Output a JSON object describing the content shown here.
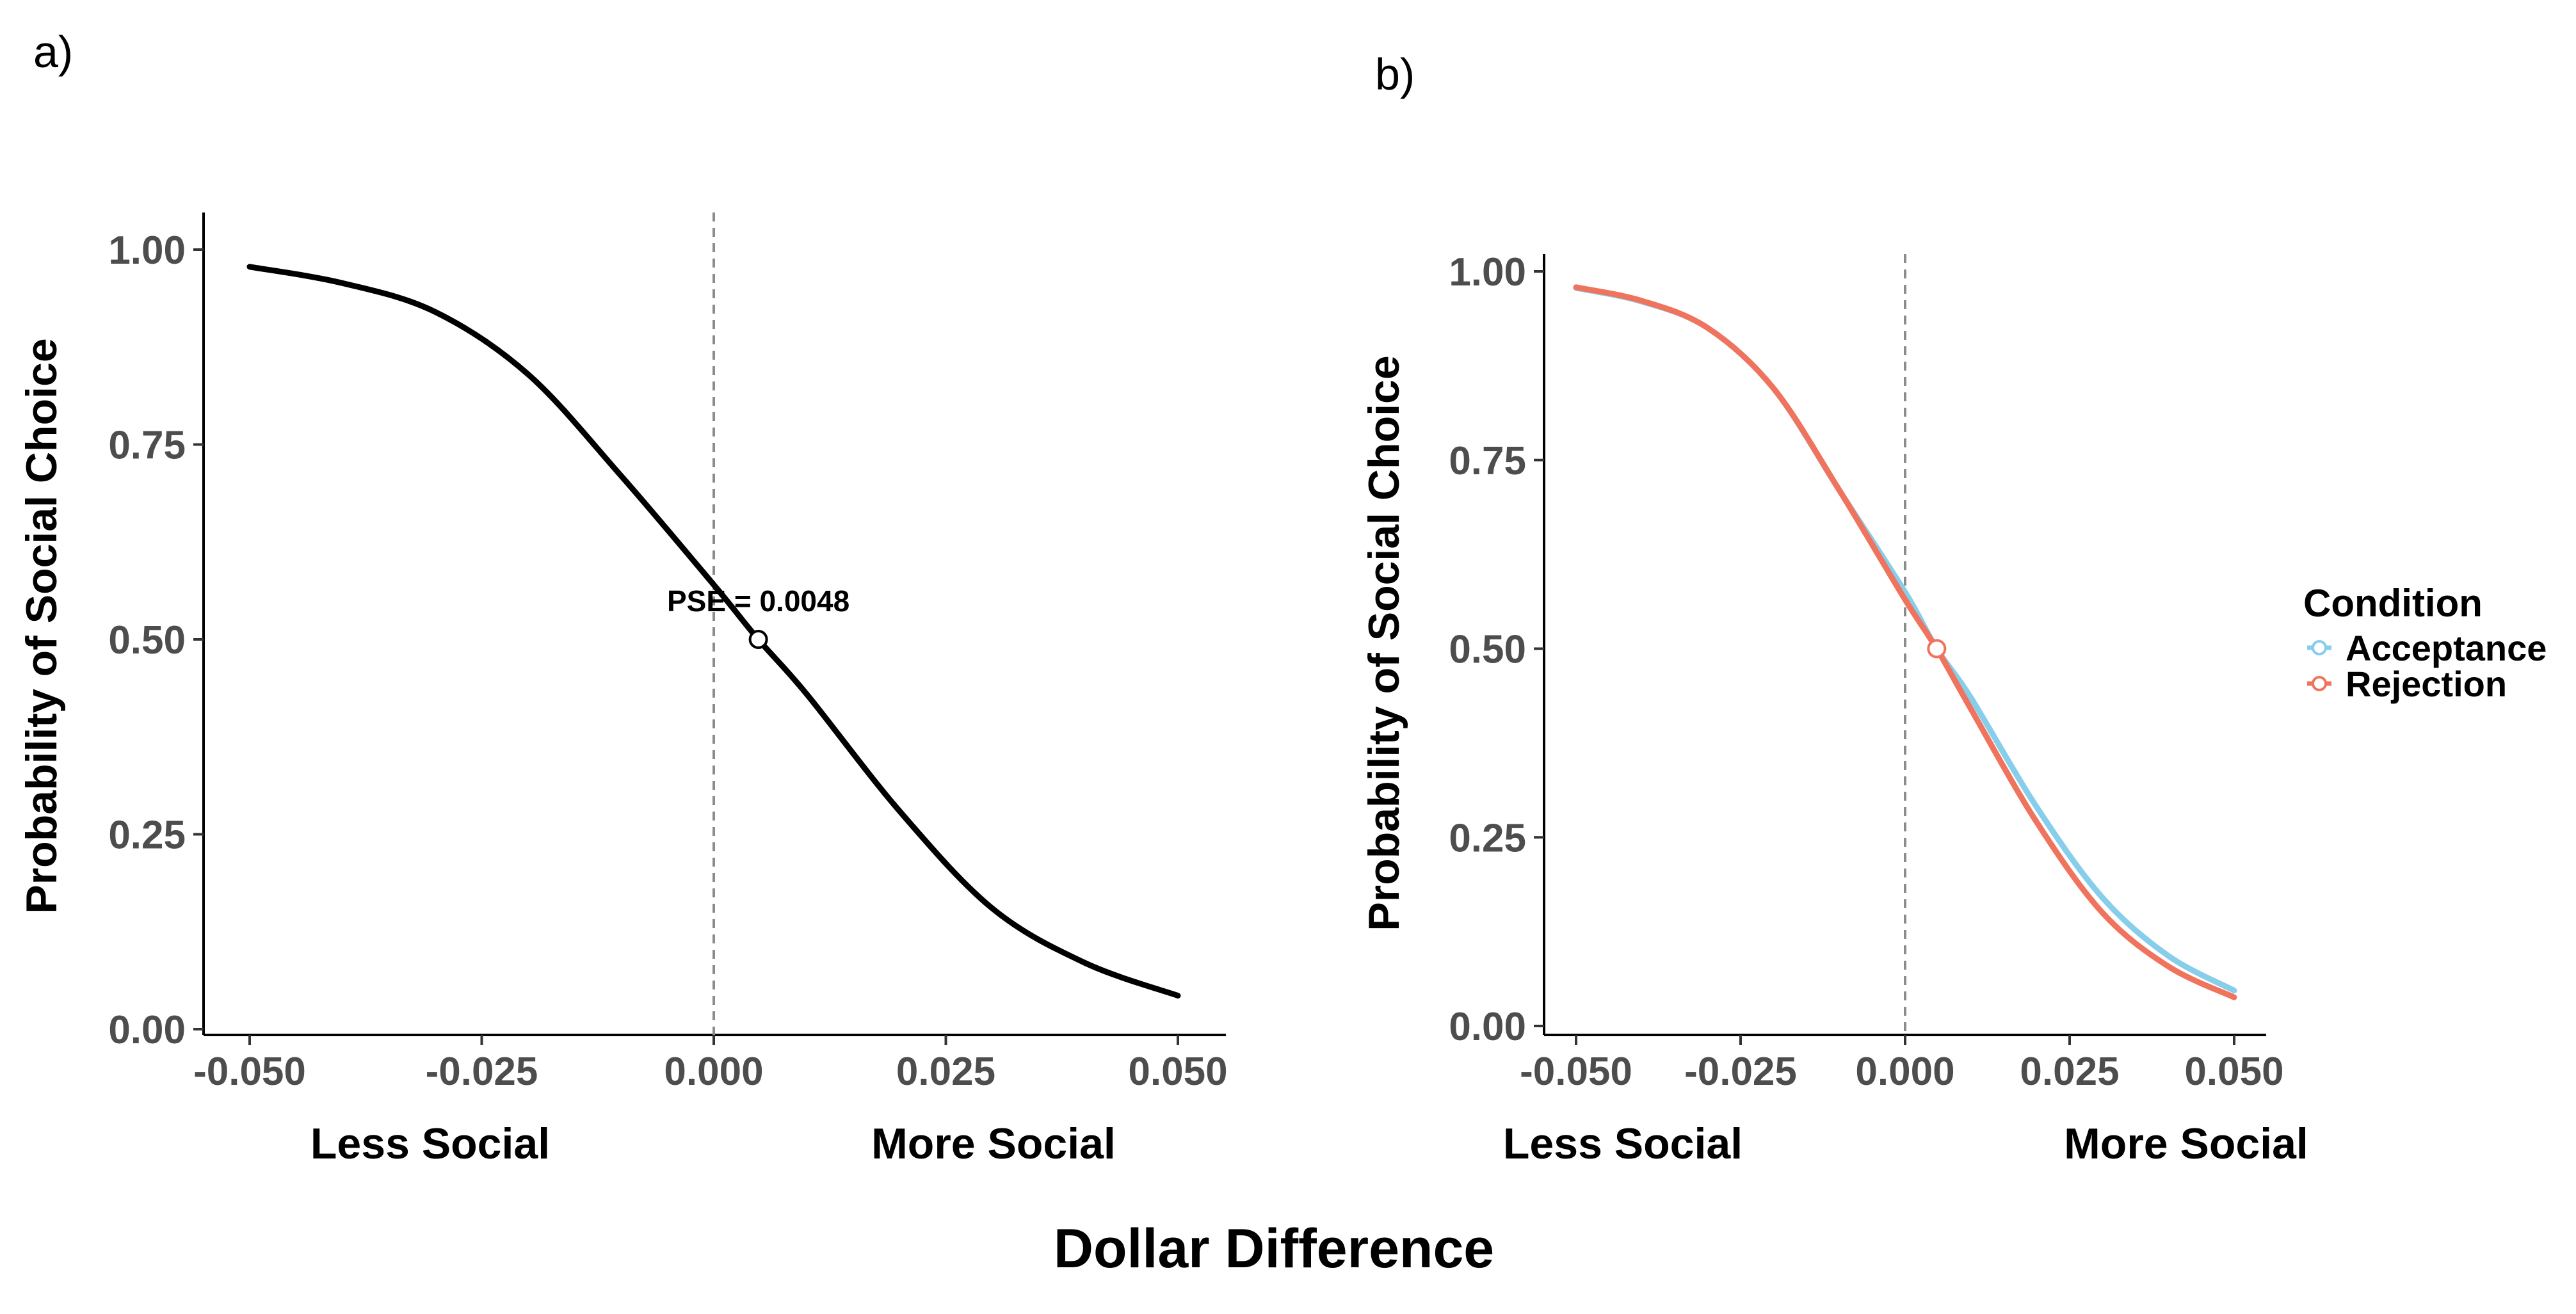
{
  "figure": {
    "xlabel": "Dollar Difference",
    "region_labels": [
      "Less Social",
      "More Social"
    ]
  },
  "chart_data": [
    {
      "panel": "a)",
      "type": "line",
      "xlabel": "",
      "ylabel": "Probability of Social Choice",
      "xlim": [
        -0.05,
        0.05
      ],
      "ylim": [
        0,
        1
      ],
      "xticks": [
        -0.05,
        -0.025,
        0,
        0.025,
        0.05
      ],
      "xtick_labels": [
        "-0.050",
        "-0.025",
        "0.000",
        "0.025",
        "0.050"
      ],
      "yticks": [
        0,
        0.25,
        0.5,
        0.75,
        1
      ],
      "ytick_labels": [
        "0.00",
        "0.25",
        "0.50",
        "0.75",
        "1.00"
      ],
      "grid": false,
      "reference_line": {
        "x": 0,
        "style": "dashed",
        "color": "#8c8c8c"
      },
      "series": [
        {
          "color": "#000000",
          "x": [
            -0.05,
            -0.04,
            -0.03,
            -0.02,
            -0.01,
            0,
            0.0048,
            0.01,
            0.02,
            0.03,
            0.04,
            0.05
          ],
          "y": [
            0.978,
            0.957,
            0.92,
            0.84,
            0.71,
            0.57,
            0.5,
            0.43,
            0.28,
            0.155,
            0.085,
            0.043
          ]
        }
      ],
      "points": [
        {
          "x": 0.0048,
          "y": 0.5
        }
      ],
      "annotations": [
        {
          "text": "PSE = 0.0048",
          "x": 0.0048,
          "y": 0.5
        }
      ]
    },
    {
      "panel": "b)",
      "type": "line",
      "xlabel": "",
      "ylabel": "Probability of Social Choice",
      "xlim": [
        -0.05,
        0.05
      ],
      "ylim": [
        0,
        1
      ],
      "xticks": [
        -0.05,
        -0.025,
        0,
        0.025,
        0.05
      ],
      "xtick_labels": [
        "-0.050",
        "-0.025",
        "0.000",
        "0.025",
        "0.050"
      ],
      "yticks": [
        0,
        0.25,
        0.5,
        0.75,
        1
      ],
      "ytick_labels": [
        "0.00",
        "0.25",
        "0.50",
        "0.75",
        "1.00"
      ],
      "grid": false,
      "reference_line": {
        "x": 0,
        "style": "dashed",
        "color": "#8c8c8c"
      },
      "legend": {
        "title": "Condition",
        "placement": "right"
      },
      "series": [
        {
          "name": "Acceptance",
          "color": "#87ceeb",
          "x": [
            -0.05,
            -0.04,
            -0.03,
            -0.02,
            -0.01,
            0,
            0.0048,
            0.01,
            0.02,
            0.03,
            0.04,
            0.05
          ],
          "y": [
            0.978,
            0.96,
            0.925,
            0.845,
            0.71,
            0.575,
            0.5,
            0.435,
            0.29,
            0.17,
            0.093,
            0.047
          ]
        },
        {
          "name": "Rejection",
          "color": "#f0735e",
          "x": [
            -0.05,
            -0.04,
            -0.03,
            -0.02,
            -0.01,
            0,
            0.0048,
            0.01,
            0.02,
            0.03,
            0.04,
            0.05
          ],
          "y": [
            0.979,
            0.961,
            0.925,
            0.845,
            0.71,
            0.565,
            0.5,
            0.42,
            0.27,
            0.15,
            0.079,
            0.038
          ]
        }
      ],
      "points": [
        {
          "x": 0.0048,
          "y": 0.5
        }
      ]
    }
  ]
}
